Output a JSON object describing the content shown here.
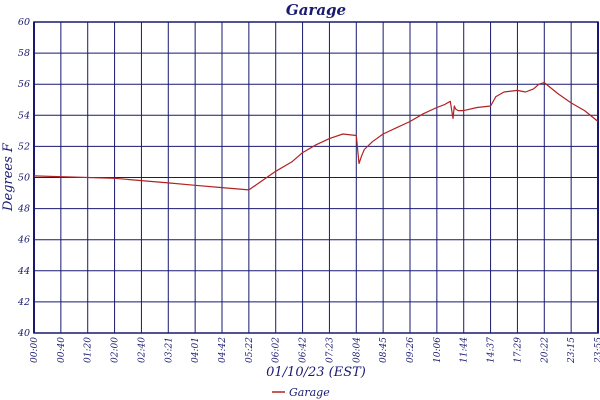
{
  "chart_data": {
    "type": "line",
    "title": "Garage",
    "xlabel": "01/10/23 (EST)",
    "ylabel": "Degrees F",
    "ylim": [
      40,
      60
    ],
    "yticks": [
      40,
      42,
      44,
      46,
      48,
      50,
      52,
      54,
      56,
      58,
      60
    ],
    "xticks": [
      "00:00",
      "00:40",
      "01:20",
      "02:00",
      "02:40",
      "03:21",
      "04:01",
      "04:42",
      "05:22",
      "06:02",
      "06:42",
      "07:23",
      "08:04",
      "08:45",
      "09:26",
      "10:06",
      "11:44",
      "14:37",
      "17:29",
      "20:22",
      "23:15",
      "23:55"
    ],
    "grid": true,
    "legend_position": "bottom-center",
    "series": [
      {
        "name": "Garage",
        "color": "#b22222",
        "x": [
          0,
          1,
          2,
          3,
          4,
          5,
          6,
          7,
          8,
          9,
          9.6,
          10.0,
          10.5,
          11.0,
          11.5,
          12.0,
          12.1,
          12.2,
          12.3,
          12.6,
          13.0,
          13.5,
          14.0,
          14.5,
          15.0,
          15.3,
          15.5,
          15.6,
          15.65,
          15.7,
          15.8,
          16.0,
          16.5,
          17.0,
          17.2,
          17.5,
          18.0,
          18.3,
          18.6,
          18.8,
          19.0,
          19.5,
          20.0,
          20.5,
          21.0
        ],
        "values": [
          50.1,
          50.05,
          50.0,
          49.95,
          49.8,
          49.65,
          49.5,
          49.35,
          49.2,
          50.4,
          51.0,
          51.6,
          52.1,
          52.5,
          52.8,
          52.7,
          50.9,
          51.4,
          51.8,
          52.3,
          52.8,
          53.2,
          53.6,
          54.1,
          54.5,
          54.7,
          54.9,
          53.8,
          54.6,
          54.4,
          54.3,
          54.3,
          54.5,
          54.6,
          55.2,
          55.5,
          55.6,
          55.5,
          55.7,
          56.0,
          56.1,
          55.4,
          54.8,
          54.3,
          53.6
        ]
      }
    ]
  }
}
